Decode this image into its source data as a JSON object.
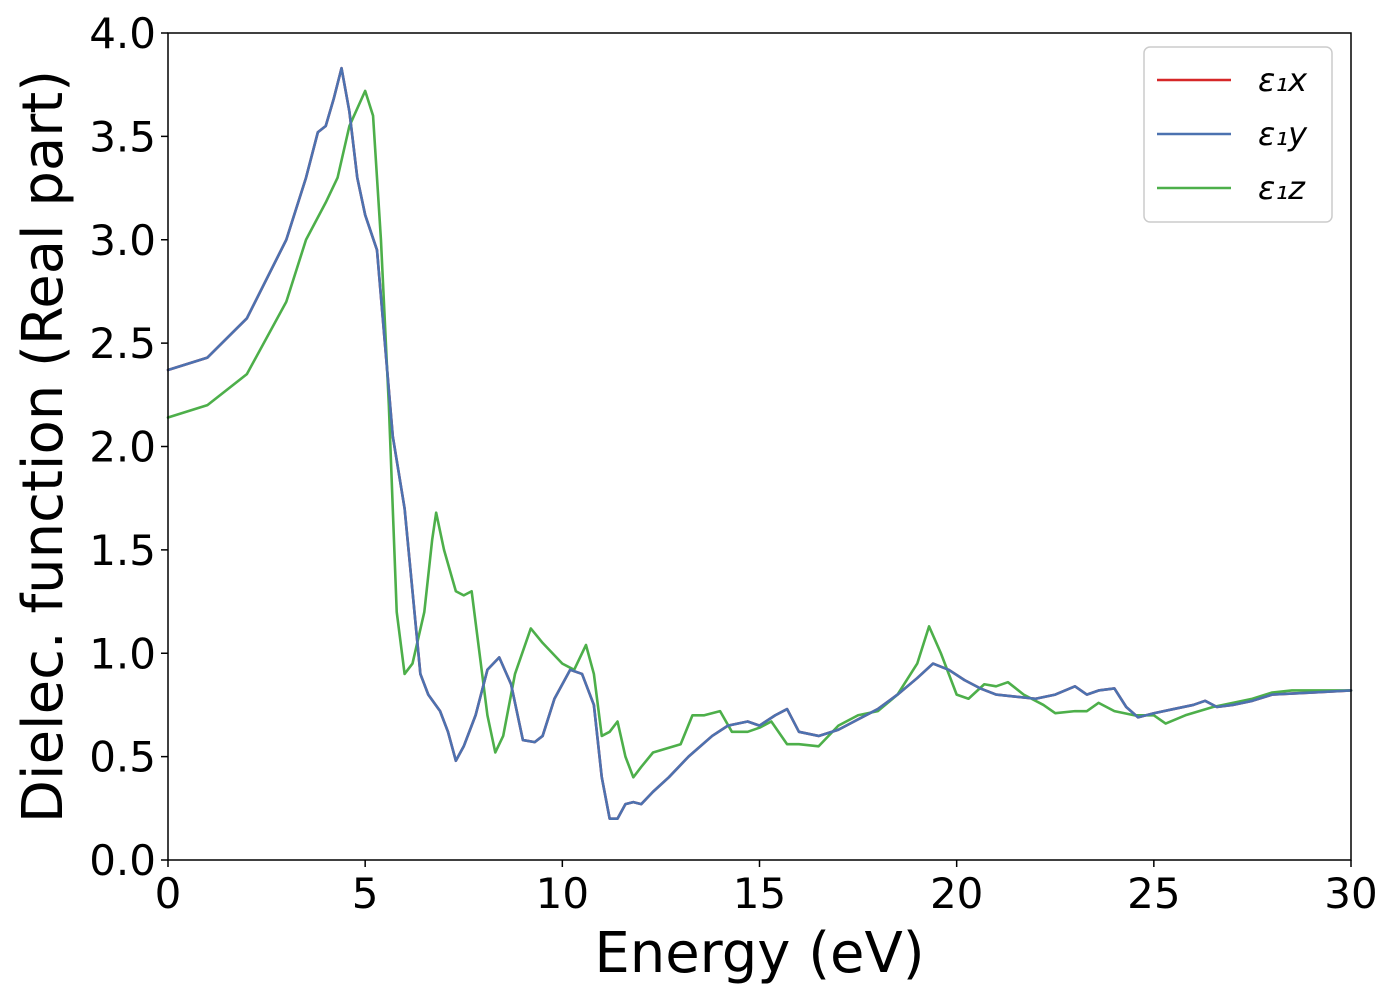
{
  "chart_data": {
    "type": "line",
    "title": "",
    "xlabel": "Energy (eV)",
    "ylabel": "Dielec. function (Real part)",
    "xlim": [
      0,
      30
    ],
    "ylim": [
      0,
      4
    ],
    "grid": false,
    "legend_position": "top-right",
    "x_ticks": [
      {
        "value": 0,
        "label": "0"
      },
      {
        "value": 5,
        "label": "5"
      },
      {
        "value": 10,
        "label": "10"
      },
      {
        "value": 15,
        "label": "15"
      },
      {
        "value": 20,
        "label": "20"
      },
      {
        "value": 25,
        "label": "25"
      },
      {
        "value": 30,
        "label": "30"
      }
    ],
    "y_ticks": [
      {
        "value": 0.0,
        "label": "0.0"
      },
      {
        "value": 0.5,
        "label": "0.5"
      },
      {
        "value": 1.0,
        "label": "1.0"
      },
      {
        "value": 1.5,
        "label": "1.5"
      },
      {
        "value": 2.0,
        "label": "2.0"
      },
      {
        "value": 2.5,
        "label": "2.5"
      },
      {
        "value": 3.0,
        "label": "3.0"
      },
      {
        "value": 3.5,
        "label": "3.5"
      },
      {
        "value": 4.0,
        "label": "4.0"
      }
    ],
    "series": [
      {
        "name": "ε₁x",
        "color": "#d62728",
        "points": [
          [
            0,
            2.37
          ],
          [
            1,
            2.43
          ],
          [
            2,
            2.62
          ],
          [
            3,
            3.0
          ],
          [
            3.5,
            3.3
          ],
          [
            3.8,
            3.52
          ],
          [
            4.0,
            3.55
          ],
          [
            4.2,
            3.68
          ],
          [
            4.4,
            3.83
          ],
          [
            4.6,
            3.62
          ],
          [
            4.8,
            3.3
          ],
          [
            5.0,
            3.12
          ],
          [
            5.3,
            2.95
          ],
          [
            5.5,
            2.5
          ],
          [
            5.7,
            2.05
          ],
          [
            6.0,
            1.7
          ],
          [
            6.2,
            1.3
          ],
          [
            6.4,
            0.9
          ],
          [
            6.6,
            0.8
          ],
          [
            6.9,
            0.72
          ],
          [
            7.1,
            0.62
          ],
          [
            7.3,
            0.48
          ],
          [
            7.5,
            0.55
          ],
          [
            7.8,
            0.7
          ],
          [
            8.1,
            0.92
          ],
          [
            8.4,
            0.98
          ],
          [
            8.7,
            0.85
          ],
          [
            9.0,
            0.58
          ],
          [
            9.3,
            0.57
          ],
          [
            9.5,
            0.6
          ],
          [
            9.8,
            0.78
          ],
          [
            10.2,
            0.92
          ],
          [
            10.5,
            0.9
          ],
          [
            10.8,
            0.75
          ],
          [
            11.0,
            0.4
          ],
          [
            11.2,
            0.2
          ],
          [
            11.4,
            0.2
          ],
          [
            11.6,
            0.27
          ],
          [
            11.8,
            0.28
          ],
          [
            12.0,
            0.27
          ],
          [
            12.3,
            0.33
          ],
          [
            12.7,
            0.4
          ],
          [
            13.2,
            0.5
          ],
          [
            13.8,
            0.6
          ],
          [
            14.2,
            0.65
          ],
          [
            14.7,
            0.67
          ],
          [
            15.0,
            0.65
          ],
          [
            15.4,
            0.7
          ],
          [
            15.7,
            0.73
          ],
          [
            16.0,
            0.62
          ],
          [
            16.5,
            0.6
          ],
          [
            17.0,
            0.63
          ],
          [
            17.5,
            0.68
          ],
          [
            18.0,
            0.73
          ],
          [
            18.5,
            0.8
          ],
          [
            19.0,
            0.88
          ],
          [
            19.4,
            0.95
          ],
          [
            19.8,
            0.92
          ],
          [
            20.2,
            0.87
          ],
          [
            20.6,
            0.83
          ],
          [
            21.0,
            0.8
          ],
          [
            21.5,
            0.79
          ],
          [
            22.0,
            0.78
          ],
          [
            22.5,
            0.8
          ],
          [
            23.0,
            0.84
          ],
          [
            23.3,
            0.8
          ],
          [
            23.6,
            0.82
          ],
          [
            24.0,
            0.83
          ],
          [
            24.3,
            0.74
          ],
          [
            24.6,
            0.69
          ],
          [
            25.0,
            0.71
          ],
          [
            25.5,
            0.73
          ],
          [
            26.0,
            0.75
          ],
          [
            26.3,
            0.77
          ],
          [
            26.6,
            0.74
          ],
          [
            27.0,
            0.75
          ],
          [
            27.5,
            0.77
          ],
          [
            28.0,
            0.8
          ],
          [
            29.0,
            0.81
          ],
          [
            30.0,
            0.82
          ]
        ]
      },
      {
        "name": "ε₁y",
        "color": "#4c72b0",
        "points": [
          [
            0,
            2.37
          ],
          [
            1,
            2.43
          ],
          [
            2,
            2.62
          ],
          [
            3,
            3.0
          ],
          [
            3.5,
            3.3
          ],
          [
            3.8,
            3.52
          ],
          [
            4.0,
            3.55
          ],
          [
            4.2,
            3.68
          ],
          [
            4.4,
            3.83
          ],
          [
            4.6,
            3.62
          ],
          [
            4.8,
            3.3
          ],
          [
            5.0,
            3.12
          ],
          [
            5.3,
            2.95
          ],
          [
            5.5,
            2.5
          ],
          [
            5.7,
            2.05
          ],
          [
            6.0,
            1.7
          ],
          [
            6.2,
            1.3
          ],
          [
            6.4,
            0.9
          ],
          [
            6.6,
            0.8
          ],
          [
            6.9,
            0.72
          ],
          [
            7.1,
            0.62
          ],
          [
            7.3,
            0.48
          ],
          [
            7.5,
            0.55
          ],
          [
            7.8,
            0.7
          ],
          [
            8.1,
            0.92
          ],
          [
            8.4,
            0.98
          ],
          [
            8.7,
            0.85
          ],
          [
            9.0,
            0.58
          ],
          [
            9.3,
            0.57
          ],
          [
            9.5,
            0.6
          ],
          [
            9.8,
            0.78
          ],
          [
            10.2,
            0.92
          ],
          [
            10.5,
            0.9
          ],
          [
            10.8,
            0.75
          ],
          [
            11.0,
            0.4
          ],
          [
            11.2,
            0.2
          ],
          [
            11.4,
            0.2
          ],
          [
            11.6,
            0.27
          ],
          [
            11.8,
            0.28
          ],
          [
            12.0,
            0.27
          ],
          [
            12.3,
            0.33
          ],
          [
            12.7,
            0.4
          ],
          [
            13.2,
            0.5
          ],
          [
            13.8,
            0.6
          ],
          [
            14.2,
            0.65
          ],
          [
            14.7,
            0.67
          ],
          [
            15.0,
            0.65
          ],
          [
            15.4,
            0.7
          ],
          [
            15.7,
            0.73
          ],
          [
            16.0,
            0.62
          ],
          [
            16.5,
            0.6
          ],
          [
            17.0,
            0.63
          ],
          [
            17.5,
            0.68
          ],
          [
            18.0,
            0.73
          ],
          [
            18.5,
            0.8
          ],
          [
            19.0,
            0.88
          ],
          [
            19.4,
            0.95
          ],
          [
            19.8,
            0.92
          ],
          [
            20.2,
            0.87
          ],
          [
            20.6,
            0.83
          ],
          [
            21.0,
            0.8
          ],
          [
            21.5,
            0.79
          ],
          [
            22.0,
            0.78
          ],
          [
            22.5,
            0.8
          ],
          [
            23.0,
            0.84
          ],
          [
            23.3,
            0.8
          ],
          [
            23.6,
            0.82
          ],
          [
            24.0,
            0.83
          ],
          [
            24.3,
            0.74
          ],
          [
            24.6,
            0.69
          ],
          [
            25.0,
            0.71
          ],
          [
            25.5,
            0.73
          ],
          [
            26.0,
            0.75
          ],
          [
            26.3,
            0.77
          ],
          [
            26.6,
            0.74
          ],
          [
            27.0,
            0.75
          ],
          [
            27.5,
            0.77
          ],
          [
            28.0,
            0.8
          ],
          [
            29.0,
            0.81
          ],
          [
            30.0,
            0.82
          ]
        ]
      },
      {
        "name": "ε₁z",
        "color": "#4daf4a",
        "points": [
          [
            0,
            2.14
          ],
          [
            1,
            2.2
          ],
          [
            2,
            2.35
          ],
          [
            3,
            2.7
          ],
          [
            3.5,
            3.0
          ],
          [
            4.0,
            3.18
          ],
          [
            4.3,
            3.3
          ],
          [
            4.6,
            3.55
          ],
          [
            5.0,
            3.72
          ],
          [
            5.2,
            3.6
          ],
          [
            5.4,
            3.0
          ],
          [
            5.6,
            2.2
          ],
          [
            5.8,
            1.2
          ],
          [
            6.0,
            0.9
          ],
          [
            6.2,
            0.95
          ],
          [
            6.5,
            1.2
          ],
          [
            6.7,
            1.55
          ],
          [
            6.8,
            1.68
          ],
          [
            7.0,
            1.5
          ],
          [
            7.3,
            1.3
          ],
          [
            7.5,
            1.28
          ],
          [
            7.7,
            1.3
          ],
          [
            7.9,
            1.0
          ],
          [
            8.1,
            0.7
          ],
          [
            8.3,
            0.52
          ],
          [
            8.5,
            0.6
          ],
          [
            8.8,
            0.9
          ],
          [
            9.2,
            1.12
          ],
          [
            9.5,
            1.05
          ],
          [
            10.0,
            0.95
          ],
          [
            10.3,
            0.92
          ],
          [
            10.6,
            1.04
          ],
          [
            10.8,
            0.9
          ],
          [
            11.0,
            0.6
          ],
          [
            11.2,
            0.62
          ],
          [
            11.4,
            0.67
          ],
          [
            11.6,
            0.5
          ],
          [
            11.8,
            0.4
          ],
          [
            12.0,
            0.45
          ],
          [
            12.3,
            0.52
          ],
          [
            13.0,
            0.56
          ],
          [
            13.3,
            0.7
          ],
          [
            13.6,
            0.7
          ],
          [
            14.0,
            0.72
          ],
          [
            14.3,
            0.62
          ],
          [
            14.7,
            0.62
          ],
          [
            15.0,
            0.64
          ],
          [
            15.3,
            0.67
          ],
          [
            15.7,
            0.56
          ],
          [
            16.0,
            0.56
          ],
          [
            16.5,
            0.55
          ],
          [
            17.0,
            0.65
          ],
          [
            17.5,
            0.7
          ],
          [
            18.0,
            0.72
          ],
          [
            18.5,
            0.8
          ],
          [
            19.0,
            0.95
          ],
          [
            19.3,
            1.13
          ],
          [
            19.6,
            1.0
          ],
          [
            20.0,
            0.8
          ],
          [
            20.3,
            0.78
          ],
          [
            20.7,
            0.85
          ],
          [
            21.0,
            0.84
          ],
          [
            21.3,
            0.86
          ],
          [
            21.7,
            0.8
          ],
          [
            22.2,
            0.75
          ],
          [
            22.5,
            0.71
          ],
          [
            23.0,
            0.72
          ],
          [
            23.3,
            0.72
          ],
          [
            23.6,
            0.76
          ],
          [
            24.0,
            0.72
          ],
          [
            24.5,
            0.7
          ],
          [
            25.0,
            0.7
          ],
          [
            25.3,
            0.66
          ],
          [
            25.8,
            0.7
          ],
          [
            26.5,
            0.74
          ],
          [
            27.0,
            0.76
          ],
          [
            27.5,
            0.78
          ],
          [
            28.0,
            0.81
          ],
          [
            28.5,
            0.82
          ],
          [
            29.0,
            0.82
          ],
          [
            30.0,
            0.82
          ]
        ]
      }
    ]
  }
}
